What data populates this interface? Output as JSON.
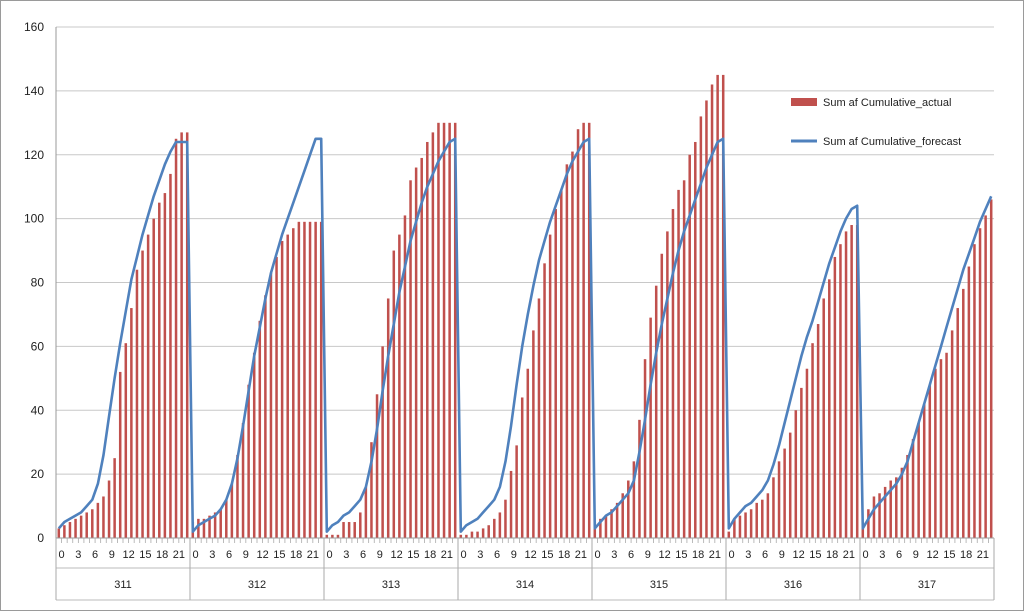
{
  "chart_data": {
    "type": "bar+line",
    "title": "",
    "xlabel": "",
    "ylabel": "",
    "ylim": [
      0,
      160
    ],
    "yticks": [
      0,
      20,
      40,
      60,
      80,
      100,
      120,
      140,
      160
    ],
    "grid": true,
    "legend_position": "top-right",
    "groups": [
      "311",
      "312",
      "313",
      "314",
      "315",
      "316",
      "317"
    ],
    "hour_ticks": [
      "0",
      "3",
      "6",
      "9",
      "12",
      "15",
      "18",
      "21"
    ],
    "hours_per_group": 24,
    "series": [
      {
        "name": "Sum af Cumulative_actual",
        "type": "bar",
        "color": "#c0504d",
        "values": [
          [
            3,
            4,
            5,
            6,
            7,
            8,
            9,
            11,
            13,
            18,
            25,
            52,
            61,
            72,
            84,
            90,
            95,
            100,
            105,
            108,
            114,
            125,
            127,
            127
          ],
          [
            5,
            6,
            6,
            7,
            8,
            9,
            12,
            17,
            26,
            36,
            48,
            58,
            68,
            76,
            83,
            88,
            93,
            95,
            97,
            99,
            99,
            99,
            99,
            99
          ],
          [
            1,
            1,
            1,
            5,
            5,
            5,
            8,
            16,
            30,
            45,
            60,
            75,
            90,
            95,
            101,
            112,
            116,
            119,
            124,
            127,
            130,
            130,
            130,
            130
          ],
          [
            1,
            1,
            2,
            2,
            3,
            4,
            6,
            8,
            12,
            21,
            29,
            44,
            53,
            65,
            75,
            86,
            95,
            103,
            109,
            117,
            121,
            128,
            130,
            130
          ],
          [
            5,
            6,
            7,
            9,
            11,
            14,
            18,
            24,
            37,
            56,
            69,
            79,
            89,
            96,
            103,
            109,
            112,
            120,
            124,
            132,
            137,
            142,
            145,
            145
          ],
          [
            2,
            6,
            7,
            8,
            9,
            11,
            12,
            14,
            19,
            24,
            28,
            33,
            40,
            47,
            53,
            61,
            67,
            75,
            81,
            88,
            92,
            96,
            98,
            98
          ],
          [
            5,
            9,
            13,
            14,
            16,
            18,
            19,
            22,
            26,
            31,
            36,
            42,
            48,
            53,
            56,
            58,
            65,
            72,
            78,
            85,
            92,
            97,
            101,
            106
          ]
        ]
      },
      {
        "name": "Sum af Cumulative_forecast",
        "type": "line",
        "color": "#4f81bd",
        "values": [
          [
            3,
            5,
            6,
            7,
            8,
            10,
            12,
            17,
            26,
            38,
            50,
            61,
            71,
            81,
            88,
            95,
            101,
            107,
            112,
            117,
            121,
            124,
            124,
            124
          ],
          [
            2,
            4,
            5,
            6,
            7,
            9,
            12,
            17,
            25,
            35,
            46,
            57,
            66,
            75,
            83,
            89,
            95,
            100,
            105,
            110,
            115,
            120,
            125,
            125
          ],
          [
            2,
            4,
            5,
            7,
            8,
            10,
            12,
            16,
            24,
            34,
            46,
            57,
            67,
            77,
            85,
            93,
            99,
            105,
            110,
            114,
            118,
            121,
            124,
            125
          ],
          [
            2,
            4,
            5,
            6,
            8,
            10,
            12,
            16,
            24,
            35,
            48,
            60,
            70,
            79,
            87,
            93,
            99,
            104,
            109,
            114,
            118,
            121,
            124,
            125
          ],
          [
            3,
            5,
            7,
            8,
            10,
            12,
            14,
            18,
            27,
            37,
            48,
            58,
            67,
            75,
            83,
            90,
            96,
            101,
            106,
            111,
            116,
            120,
            124,
            125
          ],
          [
            3,
            6,
            8,
            10,
            11,
            13,
            15,
            18,
            23,
            29,
            36,
            43,
            50,
            57,
            63,
            68,
            74,
            80,
            86,
            91,
            96,
            100,
            103,
            104
          ],
          [
            3,
            6,
            9,
            11,
            13,
            15,
            17,
            20,
            24,
            30,
            36,
            42,
            48,
            54,
            60,
            66,
            72,
            78,
            84,
            89,
            94,
            99,
            103,
            107
          ]
        ]
      }
    ]
  }
}
